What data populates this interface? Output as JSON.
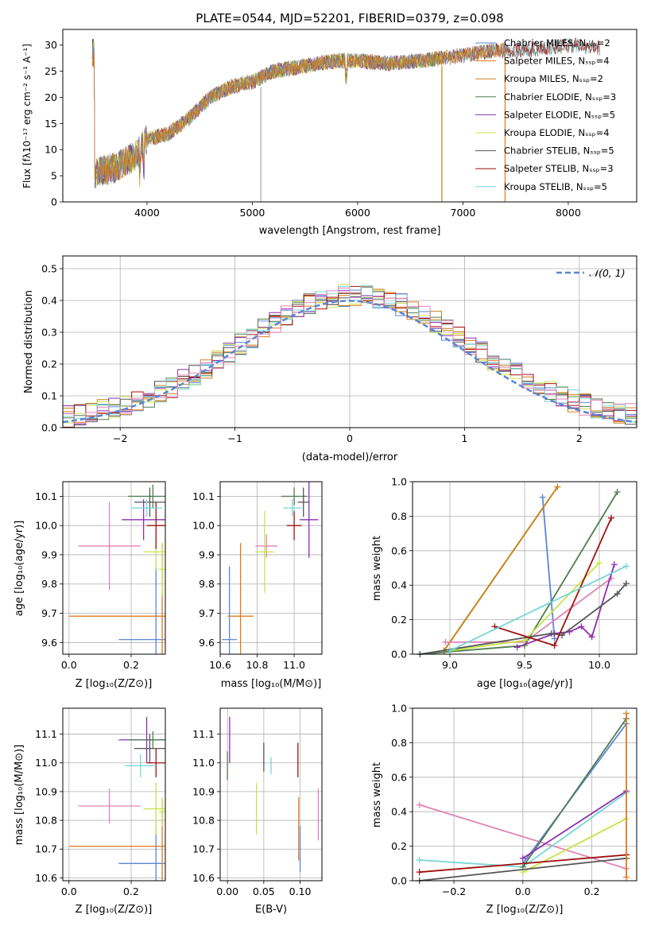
{
  "colors": {
    "chabrier_miles": "#5b86d6",
    "salpeter_miles": "#e07a1f",
    "kroupa_miles": "#c4841a",
    "chabrier_elodie": "#4f7d4f",
    "salpeter_elodie": "#8e2fb0",
    "kroupa_elodie": "#c9e34a",
    "chabrier_stelib": "#555555",
    "salpeter_stelib": "#a01010",
    "kroupa_stelib": "#76d6d6",
    "pink": "#e083b8",
    "grid": "#b0b0b0",
    "normal_line": "#5b86d6"
  },
  "chart_data": [
    {
      "id": "spectrum",
      "type": "line",
      "title": "PLATE=0544, MJD=52201, FIBERID=0379, z=0.098",
      "xlabel": "wavelength [Angstrom, rest frame]",
      "ylabel": "Flux [fλ10⁻¹⁷ erg cm⁻² s⁻¹ A⁻¹]",
      "xlim": [
        3200,
        8650
      ],
      "ylim": [
        0,
        33
      ],
      "xticks": [
        4000,
        5000,
        6000,
        7000,
        8000
      ],
      "yticks": [
        0,
        5,
        10,
        15,
        20,
        25,
        30
      ],
      "grid": false,
      "legend_position": "top-right",
      "legend": [
        {
          "label": "Chabrier MILES, Nₛₛₚ=2",
          "color": "#5b86d6"
        },
        {
          "label": "Salpeter MILES, Nₛₛₚ=4",
          "color": "#e07a1f"
        },
        {
          "label": "Kroupa MILES, Nₛₛₚ=2",
          "color": "#c4841a"
        },
        {
          "label": "Chabrier ELODIE, Nₛₛₚ=3",
          "color": "#4f7d4f"
        },
        {
          "label": "Salpeter ELODIE, Nₛₛₚ=5",
          "color": "#8e2fb0"
        },
        {
          "label": "Kroupa ELODIE, Nₛₛₚ=4",
          "color": "#c9e34a"
        },
        {
          "label": "Chabrier STELIB, Nₛₛₚ=5",
          "color": "#555555"
        },
        {
          "label": "Salpeter STELIB, Nₛₛₚ=3",
          "color": "#a01010"
        },
        {
          "label": "Kroupa STELIB, Nₛₛₚ=5",
          "color": "#76d6d6"
        }
      ],
      "continuum": [
        [
          3500,
          5.5
        ],
        [
          3700,
          6.5
        ],
        [
          3900,
          9
        ],
        [
          4000,
          12
        ],
        [
          4200,
          13
        ],
        [
          4400,
          16
        ],
        [
          4600,
          20
        ],
        [
          4800,
          22
        ],
        [
          5000,
          23
        ],
        [
          5200,
          25
        ],
        [
          5500,
          26
        ],
        [
          5800,
          27
        ],
        [
          6000,
          27
        ],
        [
          6300,
          26.5
        ],
        [
          6600,
          27
        ],
        [
          7000,
          28
        ],
        [
          7300,
          29
        ],
        [
          7600,
          29
        ],
        [
          8000,
          30
        ],
        [
          8300,
          29.5
        ],
        [
          8600,
          28.5
        ]
      ],
      "segment_ends": {
        "elodie_end": 6800,
        "miles_end": 7400,
        "stelib_start": 3480
      }
    },
    {
      "id": "residuals",
      "type": "line",
      "xlabel": "(data-model)/error",
      "ylabel": "Normed distribution",
      "xlim": [
        -2.5,
        2.5
      ],
      "ylim": [
        0,
        0.54
      ],
      "xticks": [
        -2,
        -1,
        0,
        1,
        2
      ],
      "yticks": [
        0.0,
        0.1,
        0.2,
        0.3,
        0.4,
        0.5
      ],
      "grid": true,
      "legend_position": "top-right",
      "legend": [
        {
          "label": "𝒩(0, 1)",
          "style": "dashed",
          "color": "#5b86d6"
        }
      ],
      "bin_width": 0.1,
      "histogram_peak": 0.42
    },
    {
      "id": "age_vs_Z",
      "type": "scatter",
      "xlabel": "Z [log₁₀(Z/Z⊙)]",
      "ylabel": "age  [log₁₀(age/yr)]",
      "xlim": [
        -0.02,
        0.31
      ],
      "ylim": [
        9.56,
        10.15
      ],
      "xticks": [
        0.0,
        0.2
      ],
      "yticks": [
        9.6,
        9.7,
        9.8,
        9.9,
        10.0,
        10.1
      ],
      "grid": true,
      "points": [
        {
          "x": 0.28,
          "y": 9.61,
          "xerr": 0.12,
          "yerr": 0.25,
          "c": "chabrier_miles"
        },
        {
          "x": 0.3,
          "y": 9.69,
          "xerr": 0.3,
          "yerr": 0.25,
          "c": "salpeter_miles"
        },
        {
          "x": 0.13,
          "y": 9.93,
          "xerr": 0.1,
          "yerr": 0.15,
          "c": "pink"
        },
        {
          "x": 0.27,
          "y": 10.1,
          "xerr": 0.08,
          "yerr": 0.04,
          "c": "chabrier_elodie"
        },
        {
          "x": 0.24,
          "y": 10.02,
          "xerr": 0.07,
          "yerr": 0.07,
          "c": "salpeter_elodie"
        },
        {
          "x": 0.28,
          "y": 9.91,
          "xerr": 0.04,
          "yerr": 0.06,
          "c": "kroupa_elodie"
        },
        {
          "x": 0.26,
          "y": 10.08,
          "xerr": 0.05,
          "yerr": 0.05,
          "c": "chabrier_stelib"
        },
        {
          "x": 0.28,
          "y": 10.0,
          "xerr": 0.03,
          "yerr": 0.08,
          "c": "salpeter_stelib"
        },
        {
          "x": 0.25,
          "y": 10.06,
          "xerr": 0.05,
          "yerr": 0.03,
          "c": "kroupa_stelib"
        },
        {
          "x": 0.3,
          "y": 9.85,
          "xerr": 0.01,
          "yerr": 0.09,
          "c": "kroupa_elodie"
        }
      ]
    },
    {
      "id": "age_vs_mass",
      "type": "scatter",
      "xlabel": "mass [log₁₀(M/M⊙)]",
      "ylabel": "",
      "xlim": [
        10.6,
        11.15
      ],
      "ylim": [
        9.56,
        10.15
      ],
      "xticks": [
        10.6,
        10.8,
        11.0
      ],
      "yticks": [
        9.6,
        9.7,
        9.8,
        9.9,
        10.0,
        10.1
      ],
      "grid": true,
      "points": [
        {
          "x": 10.65,
          "y": 9.61,
          "xerr": 0.04,
          "yerr": 0.25,
          "c": "chabrier_miles"
        },
        {
          "x": 10.71,
          "y": 9.69,
          "xerr": 0.07,
          "yerr": 0.25,
          "c": "salpeter_miles"
        },
        {
          "x": 10.85,
          "y": 9.93,
          "xerr": 0.06,
          "yerr": 0.04,
          "c": "pink"
        },
        {
          "x": 10.84,
          "y": 9.91,
          "xerr": 0.05,
          "yerr": 0.14,
          "c": "kroupa_elodie"
        },
        {
          "x": 11.0,
          "y": 10.1,
          "xerr": 0.07,
          "yerr": 0.03,
          "c": "chabrier_elodie"
        },
        {
          "x": 11.08,
          "y": 10.02,
          "xerr": 0.05,
          "yerr": 0.13,
          "c": "salpeter_elodie"
        },
        {
          "x": 11.05,
          "y": 10.08,
          "xerr": 0.03,
          "yerr": 0.05,
          "c": "chabrier_stelib"
        },
        {
          "x": 11.0,
          "y": 10.0,
          "xerr": 0.04,
          "yerr": 0.05,
          "c": "salpeter_stelib"
        },
        {
          "x": 10.99,
          "y": 10.06,
          "xerr": 0.05,
          "yerr": 0.03,
          "c": "kroupa_stelib"
        }
      ]
    },
    {
      "id": "massweight_vs_age",
      "type": "line",
      "xlabel": "age  [log₁₀(age/yr)]",
      "ylabel": "mass weight",
      "xlim": [
        8.75,
        10.25
      ],
      "ylim": [
        0,
        1
      ],
      "xticks": [
        9.0,
        9.5,
        10.0
      ],
      "yticks": [
        0.0,
        0.2,
        0.4,
        0.6,
        0.8,
        1.0
      ],
      "grid": true,
      "series": [
        {
          "c": "chabrier_miles",
          "pts": [
            [
              9.62,
              0.91
            ],
            [
              9.7,
              0.09
            ]
          ]
        },
        {
          "c": "salpeter_miles",
          "pts": [
            [
              8.96,
              0.02
            ],
            [
              9.72,
              0.97
            ]
          ]
        },
        {
          "c": "kroupa_miles",
          "pts": [
            [
              8.96,
              0.02
            ],
            [
              9.72,
              0.97
            ]
          ]
        },
        {
          "c": "pink",
          "pts": [
            [
              8.97,
              0.07
            ],
            [
              9.5,
              0.07
            ],
            [
              10.08,
              0.44
            ]
          ]
        },
        {
          "c": "chabrier_elodie",
          "pts": [
            [
              8.8,
              0.0
            ],
            [
              9.5,
              0.05
            ],
            [
              10.12,
              0.94
            ]
          ]
        },
        {
          "c": "salpeter_elodie",
          "pts": [
            [
              9.45,
              0.04
            ],
            [
              9.7,
              0.12
            ],
            [
              9.8,
              0.13
            ],
            [
              9.88,
              0.16
            ],
            [
              9.95,
              0.1
            ],
            [
              10.1,
              0.52
            ]
          ]
        },
        {
          "c": "kroupa_elodie",
          "pts": [
            [
              9.0,
              0.02
            ],
            [
              9.5,
              0.08
            ],
            [
              10.0,
              0.53
            ]
          ]
        },
        {
          "c": "chabrier_stelib",
          "pts": [
            [
              8.8,
              0.0
            ],
            [
              9.68,
              0.12
            ],
            [
              9.75,
              0.11
            ],
            [
              10.12,
              0.35
            ],
            [
              10.18,
              0.41
            ]
          ]
        },
        {
          "c": "salpeter_stelib",
          "pts": [
            [
              9.3,
              0.16
            ],
            [
              9.7,
              0.05
            ],
            [
              10.08,
              0.79
            ]
          ]
        },
        {
          "c": "kroupa_stelib",
          "pts": [
            [
              9.0,
              0.02
            ],
            [
              10.18,
              0.51
            ]
          ]
        }
      ]
    },
    {
      "id": "mass_vs_Z",
      "type": "scatter",
      "xlabel": "Z [log₁₀(Z/Z⊙)]",
      "ylabel": "mass [log₁₀(M/M⊙)]",
      "xlim": [
        -0.02,
        0.31
      ],
      "ylim": [
        10.59,
        11.19
      ],
      "xticks": [
        0.0,
        0.2
      ],
      "yticks": [
        10.6,
        10.7,
        10.8,
        10.9,
        11.0,
        11.1
      ],
      "grid": true,
      "points": [
        {
          "x": 0.28,
          "y": 10.65,
          "xerr": 0.12,
          "yerr": 0.13,
          "c": "chabrier_miles"
        },
        {
          "x": 0.3,
          "y": 10.71,
          "xerr": 0.3,
          "yerr": 0.16,
          "c": "salpeter_miles"
        },
        {
          "x": 0.13,
          "y": 10.85,
          "xerr": 0.1,
          "yerr": 0.06,
          "c": "pink"
        },
        {
          "x": 0.28,
          "y": 10.84,
          "xerr": 0.04,
          "yerr": 0.09,
          "c": "kroupa_elodie"
        },
        {
          "x": 0.25,
          "y": 11.08,
          "xerr": 0.09,
          "yerr": 0.08,
          "c": "salpeter_elodie"
        },
        {
          "x": 0.27,
          "y": 11.08,
          "xerr": 0.08,
          "yerr": 0.03,
          "c": "chabrier_elodie"
        },
        {
          "x": 0.26,
          "y": 11.05,
          "xerr": 0.05,
          "yerr": 0.05,
          "c": "chabrier_stelib"
        },
        {
          "x": 0.28,
          "y": 11.0,
          "xerr": 0.03,
          "yerr": 0.05,
          "c": "salpeter_stelib"
        },
        {
          "x": 0.23,
          "y": 10.99,
          "xerr": 0.05,
          "yerr": 0.04,
          "c": "kroupa_stelib"
        },
        {
          "x": 0.3,
          "y": 10.83,
          "xerr": 0.01,
          "yerr": 0.05,
          "c": "kroupa_elodie"
        }
      ]
    },
    {
      "id": "mass_vs_EBV",
      "type": "scatter",
      "xlabel": "E(B-V)",
      "ylabel": "",
      "xlim": [
        -0.01,
        0.13
      ],
      "ylim": [
        10.59,
        11.19
      ],
      "xticks": [
        0.0,
        0.05,
        0.1
      ],
      "yticks": [
        10.6,
        10.7,
        10.8,
        10.9,
        11.0,
        11.1
      ],
      "grid": true,
      "points": [
        {
          "x": 0.0,
          "y": 10.99,
          "yerr": 0.05,
          "c": "chabrier_elodie"
        },
        {
          "x": 0.003,
          "y": 11.08,
          "yerr": 0.08,
          "c": "salpeter_elodie"
        },
        {
          "x": 0.04,
          "y": 10.84,
          "yerr": 0.09,
          "c": "kroupa_elodie"
        },
        {
          "x": 0.05,
          "y": 11.02,
          "yerr": 0.05,
          "c": "chabrier_stelib"
        },
        {
          "x": 0.06,
          "y": 10.99,
          "yerr": 0.03,
          "c": "kroupa_stelib"
        },
        {
          "x": 0.097,
          "y": 11.01,
          "yerr": 0.06,
          "c": "salpeter_stelib"
        },
        {
          "x": 0.098,
          "y": 10.77,
          "yerr": 0.11,
          "c": "salpeter_miles"
        },
        {
          "x": 0.1,
          "y": 10.7,
          "yerr": 0.08,
          "c": "chabrier_miles"
        },
        {
          "x": 0.125,
          "y": 10.82,
          "yerr": 0.09,
          "c": "pink"
        }
      ]
    },
    {
      "id": "massweight_vs_Z",
      "type": "line",
      "xlabel": "Z [log₁₀(Z/Z⊙)]",
      "ylabel": "mass weight",
      "xlim": [
        -0.32,
        0.33
      ],
      "ylim": [
        0,
        1
      ],
      "xticks": [
        -0.2,
        0.0,
        0.2
      ],
      "yticks": [
        0.0,
        0.2,
        0.4,
        0.6,
        0.8,
        1.0
      ],
      "grid": true,
      "series": [
        {
          "c": "pink",
          "pts": [
            [
              -0.3,
              0.44
            ],
            [
              0.3,
              0.07
            ]
          ]
        },
        {
          "c": "kroupa_stelib",
          "pts": [
            [
              -0.3,
              0.12
            ],
            [
              0.0,
              0.08
            ],
            [
              0.3,
              0.51
            ]
          ]
        },
        {
          "c": "chabrier_miles",
          "pts": [
            [
              0.0,
              0.1
            ],
            [
              0.3,
              0.91
            ]
          ]
        },
        {
          "c": "chabrier_elodie",
          "pts": [
            [
              0.0,
              0.08
            ],
            [
              0.3,
              0.94
            ]
          ]
        },
        {
          "c": "salpeter_elodie",
          "pts": [
            [
              0.0,
              0.13
            ],
            [
              0.3,
              0.52
            ]
          ]
        },
        {
          "c": "kroupa_elodie",
          "pts": [
            [
              0.0,
              0.05
            ],
            [
              0.3,
              0.36
            ]
          ]
        },
        {
          "c": "salpeter_stelib",
          "pts": [
            [
              -0.3,
              0.05
            ],
            [
              0.3,
              0.15
            ]
          ]
        },
        {
          "c": "chabrier_stelib",
          "pts": [
            [
              -0.3,
              0.0
            ],
            [
              0.3,
              0.13
            ]
          ]
        },
        {
          "c": "salpeter_miles",
          "pts": [
            [
              0.3,
              0.02
            ],
            [
              0.3,
              0.97
            ]
          ]
        }
      ]
    }
  ]
}
